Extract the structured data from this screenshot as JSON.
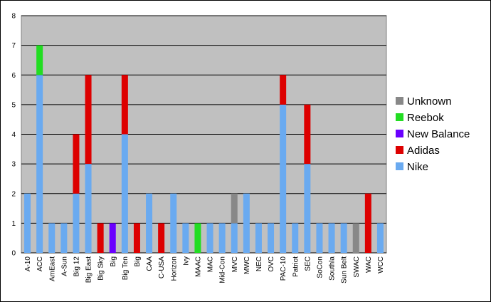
{
  "chart_data": {
    "type": "stacked-bar",
    "categories": [
      "A-10",
      "ACC",
      "AmEast",
      "A-Sun",
      "Big 12",
      "Big East",
      "Big Sky",
      "Big",
      "Big Ten",
      "Big",
      "CAA",
      "C-USA",
      "Horizon",
      "Ivy",
      "MAAC",
      "MAC",
      "Mid-Con",
      "MVC",
      "MWC",
      "NEC",
      "OVC",
      "PAC-10",
      "Patriot",
      "SEC",
      "SoCon",
      "Southla",
      "Sun Belt",
      "SWAC",
      "WAC",
      "WCC"
    ],
    "series": [
      {
        "name": "Nike",
        "color": "#6aaaf0",
        "values": [
          2,
          6,
          1,
          1,
          2,
          3,
          0,
          0,
          4,
          0,
          2,
          0,
          2,
          1,
          0,
          1,
          1,
          1,
          2,
          1,
          1,
          5,
          1,
          3,
          1,
          1,
          1,
          0,
          0,
          1
        ]
      },
      {
        "name": "Adidas",
        "color": "#dd0000",
        "values": [
          0,
          0,
          0,
          0,
          2,
          3,
          1,
          0,
          2,
          1,
          0,
          1,
          0,
          0,
          0,
          0,
          0,
          0,
          0,
          0,
          0,
          1,
          0,
          2,
          0,
          0,
          0,
          0,
          2,
          0
        ]
      },
      {
        "name": "New Balance",
        "color": "#6a00ff",
        "values": [
          0,
          0,
          0,
          0,
          0,
          0,
          0,
          1,
          0,
          0,
          0,
          0,
          0,
          0,
          0,
          0,
          0,
          0,
          0,
          0,
          0,
          0,
          0,
          0,
          0,
          0,
          0,
          0,
          0,
          0
        ]
      },
      {
        "name": "Reebok",
        "color": "#22dd22",
        "values": [
          0,
          1,
          0,
          0,
          0,
          0,
          0,
          0,
          0,
          0,
          0,
          0,
          0,
          0,
          1,
          0,
          0,
          0,
          0,
          0,
          0,
          0,
          0,
          0,
          0,
          0,
          0,
          0,
          0,
          0
        ]
      },
      {
        "name": "Unknown",
        "color": "#888888",
        "values": [
          0,
          0,
          0,
          0,
          0,
          0,
          0,
          0,
          0,
          0,
          0,
          0,
          0,
          0,
          0,
          0,
          0,
          1,
          0,
          0,
          0,
          0,
          0,
          0,
          0,
          0,
          0,
          1,
          0,
          0
        ]
      }
    ],
    "ylim": [
      0,
      8
    ],
    "yticks": [
      0,
      1,
      2,
      3,
      4,
      5,
      6,
      7,
      8
    ],
    "grid": true,
    "legend": "right"
  }
}
